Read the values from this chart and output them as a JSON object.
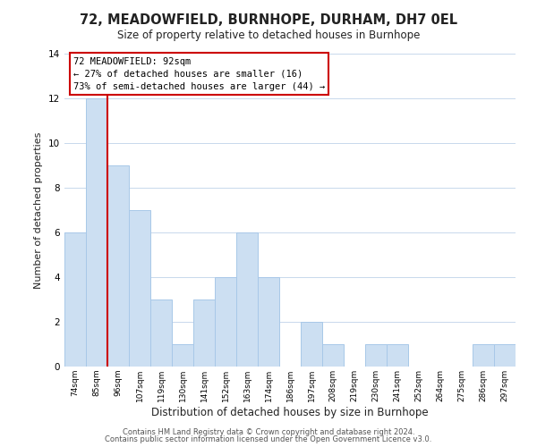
{
  "title": "72, MEADOWFIELD, BURNHOPE, DURHAM, DH7 0EL",
  "subtitle": "Size of property relative to detached houses in Burnhope",
  "xlabel": "Distribution of detached houses by size in Burnhope",
  "ylabel": "Number of detached properties",
  "bar_color": "#ccdff2",
  "bar_edge_color": "#a8c8e8",
  "background_color": "#ffffff",
  "grid_color": "#c8d8ec",
  "categories": [
    "74sqm",
    "85sqm",
    "96sqm",
    "107sqm",
    "119sqm",
    "130sqm",
    "141sqm",
    "152sqm",
    "163sqm",
    "174sqm",
    "186sqm",
    "197sqm",
    "208sqm",
    "219sqm",
    "230sqm",
    "241sqm",
    "252sqm",
    "264sqm",
    "275sqm",
    "286sqm",
    "297sqm"
  ],
  "values": [
    6,
    12,
    9,
    7,
    3,
    1,
    3,
    4,
    6,
    4,
    0,
    2,
    1,
    0,
    1,
    1,
    0,
    0,
    0,
    1,
    1
  ],
  "ylim": [
    0,
    14
  ],
  "yticks": [
    0,
    2,
    4,
    6,
    8,
    10,
    12,
    14
  ],
  "property_line_x": 1.5,
  "property_line_color": "#cc0000",
  "annotation_title": "72 MEADOWFIELD: 92sqm",
  "annotation_line1": "← 27% of detached houses are smaller (16)",
  "annotation_line2": "73% of semi-detached houses are larger (44) →",
  "annotation_box_color": "#ffffff",
  "annotation_box_edge": "#cc0000",
  "footer1": "Contains HM Land Registry data © Crown copyright and database right 2024.",
  "footer2": "Contains public sector information licensed under the Open Government Licence v3.0."
}
